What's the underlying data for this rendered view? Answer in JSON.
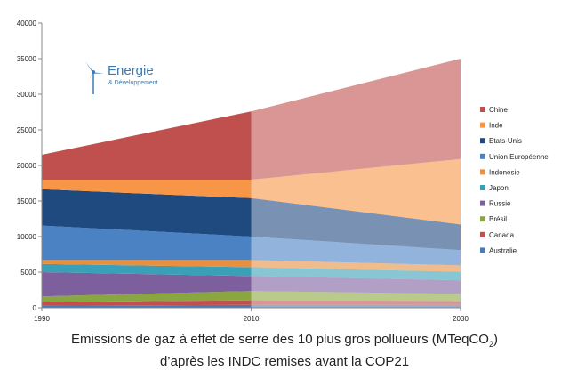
{
  "chart_data": {
    "type": "area",
    "stacked": true,
    "x": [
      1990,
      2010,
      2030
    ],
    "ylim": [
      0,
      40000
    ],
    "yticks": [
      0,
      5000,
      10000,
      15000,
      20000,
      25000,
      30000,
      35000,
      40000
    ],
    "grid": false,
    "legend_position": "right",
    "projection_start": 2010,
    "series": [
      {
        "name": "Australie",
        "color": "#4a7ab8",
        "values": [
          300,
          400,
          400
        ]
      },
      {
        "name": "Canada",
        "color": "#c0504d",
        "values": [
          500,
          650,
          550
        ]
      },
      {
        "name": "Brésil",
        "color": "#8aa640",
        "values": [
          800,
          1300,
          1000
        ]
      },
      {
        "name": "Russie",
        "color": "#7d5f9e",
        "values": [
          3400,
          2100,
          1900
        ]
      },
      {
        "name": "Japon",
        "color": "#3aa0b8",
        "values": [
          1150,
          1250,
          1200
        ]
      },
      {
        "name": "Indonésie",
        "color": "#e89040",
        "values": [
          550,
          1000,
          900
        ]
      },
      {
        "name": "Union Européenne",
        "color": "#4a82c4",
        "values": [
          4850,
          3300,
          2150
        ]
      },
      {
        "name": "Etats-Unis",
        "color": "#1f4a80",
        "values": [
          5100,
          5400,
          3600
        ]
      },
      {
        "name": "Inde",
        "color": "#f79646",
        "values": [
          1350,
          2600,
          9200
        ]
      },
      {
        "name": "Chine",
        "color": "#c0504d",
        "values": [
          3500,
          9600,
          14100
        ]
      }
    ]
  },
  "logo": {
    "main": "Energie",
    "sub": "& Développement"
  },
  "caption": {
    "line1": "Emissions de gaz à effet de serre des 10 plus gros pollueurs  (MTeqCO",
    "subscript": "2",
    "line1_end": ")",
    "line2": "d’après les INDC remises avant la COP21"
  }
}
